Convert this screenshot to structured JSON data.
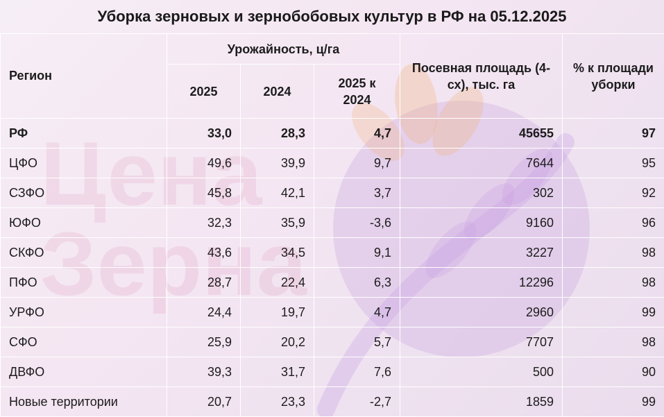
{
  "title": "Уборка зерновых и зернобобовых культур в РФ на 05.12.2025",
  "watermark": {
    "line1": "Цена",
    "line2": "Зерна"
  },
  "headers": {
    "region": "Регион",
    "yield_group": "Урожайность, ц/га",
    "y2025": "2025",
    "y2024": "2024",
    "diff": "2025 к 2024",
    "area": "Посевная площадь (4-сх), тыс. га",
    "pct": "% к площади уборки"
  },
  "rows": [
    {
      "region": "РФ",
      "y2025": "33,0",
      "y2024": "28,3",
      "diff": "4,7",
      "area": "45655",
      "pct": "97"
    },
    {
      "region": "ЦФО",
      "y2025": "49,6",
      "y2024": "39,9",
      "diff": "9,7",
      "area": "7644",
      "pct": "95"
    },
    {
      "region": "СЗФО",
      "y2025": "45,8",
      "y2024": "42,1",
      "diff": "3,7",
      "area": "302",
      "pct": "92"
    },
    {
      "region": "ЮФО",
      "y2025": "32,3",
      "y2024": "35,9",
      "diff": "-3,6",
      "area": "9160",
      "pct": "96"
    },
    {
      "region": "СКФО",
      "y2025": "43,6",
      "y2024": "34,5",
      "diff": "9,1",
      "area": "3227",
      "pct": "98"
    },
    {
      "region": "ПФО",
      "y2025": "28,7",
      "y2024": "22,4",
      "diff": "6,3",
      "area": "12296",
      "pct": "98"
    },
    {
      "region": "УРФО",
      "y2025": "24,4",
      "y2024": "19,7",
      "diff": "4,7",
      "area": "2960",
      "pct": "99"
    },
    {
      "region": "СФО",
      "y2025": "25,9",
      "y2024": "20,2",
      "diff": "5,7",
      "area": "7707",
      "pct": "98"
    },
    {
      "region": "ДВФО",
      "y2025": "39,3",
      "y2024": "31,7",
      "diff": "7,6",
      "area": "500",
      "pct": "90"
    },
    {
      "region": "Новые территории",
      "y2025": "20,7",
      "y2024": "23,3",
      "diff": "-2,7",
      "area": "1859",
      "pct": "99"
    }
  ]
}
